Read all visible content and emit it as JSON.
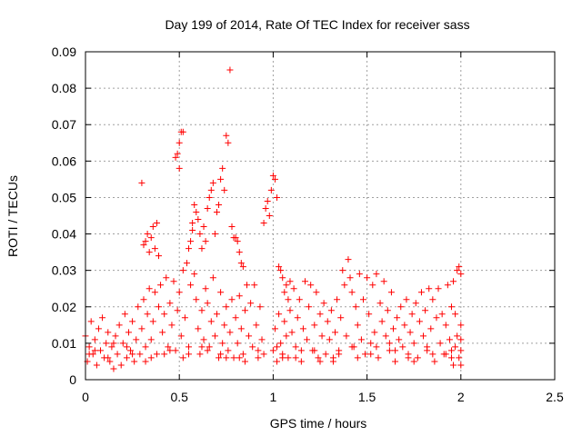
{
  "chart_data": {
    "type": "scatter",
    "title": "Day 199 of 2014, Rate Of TEC Index for receiver sass",
    "xlabel": "GPS time / hours",
    "ylabel": "ROTI / TECUs",
    "xlim": [
      0,
      2.5
    ],
    "ylim": [
      0,
      0.09
    ],
    "xticks": [
      0,
      0.5,
      1,
      1.5,
      2,
      2.5
    ],
    "xtick_labels": [
      "0",
      "0.5",
      "1",
      "1.5",
      "2",
      "2.5"
    ],
    "yticks": [
      0,
      0.01,
      0.02,
      0.03,
      0.04,
      0.05,
      0.06,
      0.07,
      0.08,
      0.09
    ],
    "ytick_labels": [
      "0",
      "0.01",
      "0.02",
      "0.03",
      "0.04",
      "0.05",
      "0.06",
      "0.07",
      "0.08",
      "0.09"
    ],
    "grid": true,
    "marker": "+",
    "marker_color": "#ff0000",
    "series": [
      {
        "name": "ROTI",
        "points": [
          [
            0.0,
            0.012
          ],
          [
            0.01,
            0.005
          ],
          [
            0.02,
            0.009
          ],
          [
            0.03,
            0.016
          ],
          [
            0.04,
            0.007
          ],
          [
            0.05,
            0.011
          ],
          [
            0.06,
            0.004
          ],
          [
            0.07,
            0.014
          ],
          [
            0.08,
            0.008
          ],
          [
            0.09,
            0.017
          ],
          [
            0.1,
            0.006
          ],
          [
            0.11,
            0.01
          ],
          [
            0.12,
            0.013
          ],
          [
            0.13,
            0.005
          ],
          [
            0.14,
            0.009
          ],
          [
            0.15,
            0.003
          ],
          [
            0.16,
            0.012
          ],
          [
            0.17,
            0.007
          ],
          [
            0.18,
            0.015
          ],
          [
            0.19,
            0.004
          ],
          [
            0.2,
            0.01
          ],
          [
            0.21,
            0.018
          ],
          [
            0.22,
            0.006
          ],
          [
            0.23,
            0.013
          ],
          [
            0.24,
            0.008
          ],
          [
            0.25,
            0.016
          ],
          [
            0.26,
            0.005
          ],
          [
            0.27,
            0.011
          ],
          [
            0.28,
            0.02
          ],
          [
            0.29,
            0.007
          ],
          [
            0.3,
            0.054
          ],
          [
            0.31,
            0.037
          ],
          [
            0.32,
            0.038
          ],
          [
            0.33,
            0.04
          ],
          [
            0.34,
            0.035
          ],
          [
            0.35,
            0.039
          ],
          [
            0.36,
            0.042
          ],
          [
            0.37,
            0.036
          ],
          [
            0.38,
            0.043
          ],
          [
            0.39,
            0.034
          ],
          [
            0.3,
            0.014
          ],
          [
            0.31,
            0.022
          ],
          [
            0.32,
            0.009
          ],
          [
            0.33,
            0.018
          ],
          [
            0.34,
            0.025
          ],
          [
            0.35,
            0.011
          ],
          [
            0.36,
            0.016
          ],
          [
            0.37,
            0.024
          ],
          [
            0.38,
            0.007
          ],
          [
            0.39,
            0.02
          ],
          [
            0.4,
            0.026
          ],
          [
            0.41,
            0.013
          ],
          [
            0.42,
            0.018
          ],
          [
            0.43,
            0.028
          ],
          [
            0.44,
            0.009
          ],
          [
            0.45,
            0.021
          ],
          [
            0.46,
            0.015
          ],
          [
            0.47,
            0.027
          ],
          [
            0.48,
            0.008
          ],
          [
            0.49,
            0.019
          ],
          [
            0.48,
            0.061
          ],
          [
            0.49,
            0.062
          ],
          [
            0.5,
            0.065
          ],
          [
            0.51,
            0.068
          ],
          [
            0.52,
            0.068
          ],
          [
            0.5,
            0.058
          ],
          [
            0.5,
            0.024
          ],
          [
            0.51,
            0.012
          ],
          [
            0.52,
            0.03
          ],
          [
            0.53,
            0.017
          ],
          [
            0.54,
            0.032
          ],
          [
            0.55,
            0.009
          ],
          [
            0.56,
            0.026
          ],
          [
            0.57,
            0.043
          ],
          [
            0.58,
            0.048
          ],
          [
            0.59,
            0.046
          ],
          [
            0.55,
            0.036
          ],
          [
            0.56,
            0.038
          ],
          [
            0.57,
            0.041
          ],
          [
            0.58,
            0.029
          ],
          [
            0.59,
            0.022
          ],
          [
            0.6,
            0.044
          ],
          [
            0.61,
            0.04
          ],
          [
            0.62,
            0.036
          ],
          [
            0.63,
            0.042
          ],
          [
            0.64,
            0.038
          ],
          [
            0.6,
            0.014
          ],
          [
            0.61,
            0.007
          ],
          [
            0.62,
            0.019
          ],
          [
            0.63,
            0.011
          ],
          [
            0.64,
            0.025
          ],
          [
            0.65,
            0.047
          ],
          [
            0.66,
            0.05
          ],
          [
            0.67,
            0.052
          ],
          [
            0.68,
            0.054
          ],
          [
            0.69,
            0.04
          ],
          [
            0.65,
            0.021
          ],
          [
            0.66,
            0.009
          ],
          [
            0.67,
            0.016
          ],
          [
            0.68,
            0.028
          ],
          [
            0.69,
            0.012
          ],
          [
            0.7,
            0.046
          ],
          [
            0.71,
            0.048
          ],
          [
            0.72,
            0.055
          ],
          [
            0.73,
            0.058
          ],
          [
            0.74,
            0.052
          ],
          [
            0.7,
            0.018
          ],
          [
            0.71,
            0.006
          ],
          [
            0.72,
            0.024
          ],
          [
            0.73,
            0.01
          ],
          [
            0.74,
            0.015
          ],
          [
            0.75,
            0.067
          ],
          [
            0.76,
            0.065
          ],
          [
            0.77,
            0.085
          ],
          [
            0.78,
            0.042
          ],
          [
            0.79,
            0.039
          ],
          [
            0.75,
            0.02
          ],
          [
            0.76,
            0.008
          ],
          [
            0.77,
            0.013
          ],
          [
            0.78,
            0.022
          ],
          [
            0.79,
            0.006
          ],
          [
            0.8,
            0.039
          ],
          [
            0.81,
            0.038
          ],
          [
            0.82,
            0.035
          ],
          [
            0.83,
            0.032
          ],
          [
            0.84,
            0.031
          ],
          [
            0.8,
            0.017
          ],
          [
            0.81,
            0.01
          ],
          [
            0.82,
            0.023
          ],
          [
            0.83,
            0.014
          ],
          [
            0.84,
            0.007
          ],
          [
            0.85,
            0.019
          ],
          [
            0.86,
            0.026
          ],
          [
            0.87,
            0.012
          ],
          [
            0.88,
            0.021
          ],
          [
            0.89,
            0.009
          ],
          [
            0.9,
            0.026
          ],
          [
            0.91,
            0.015
          ],
          [
            0.92,
            0.006
          ],
          [
            0.93,
            0.02
          ],
          [
            0.94,
            0.011
          ],
          [
            0.95,
            0.043
          ],
          [
            0.96,
            0.047
          ],
          [
            0.97,
            0.049
          ],
          [
            0.98,
            0.045
          ],
          [
            0.99,
            0.052
          ],
          [
            1.0,
            0.056
          ],
          [
            1.01,
            0.055
          ],
          [
            1.02,
            0.05
          ],
          [
            1.03,
            0.031
          ],
          [
            1.04,
            0.03
          ],
          [
            1.05,
            0.028
          ],
          [
            1.06,
            0.024
          ],
          [
            1.07,
            0.026
          ],
          [
            1.08,
            0.022
          ],
          [
            1.09,
            0.027
          ],
          [
            1.0,
            0.008
          ],
          [
            1.01,
            0.014
          ],
          [
            1.02,
            0.005
          ],
          [
            1.03,
            0.018
          ],
          [
            1.04,
            0.01
          ],
          [
            1.05,
            0.007
          ],
          [
            1.06,
            0.016
          ],
          [
            1.07,
            0.012
          ],
          [
            1.08,
            0.006
          ],
          [
            1.09,
            0.019
          ],
          [
            1.1,
            0.013
          ],
          [
            1.11,
            0.025
          ],
          [
            1.12,
            0.009
          ],
          [
            1.13,
            0.017
          ],
          [
            1.14,
            0.022
          ],
          [
            1.15,
            0.005
          ],
          [
            1.16,
            0.014
          ],
          [
            1.17,
            0.027
          ],
          [
            1.18,
            0.011
          ],
          [
            1.19,
            0.02
          ],
          [
            1.2,
            0.026
          ],
          [
            1.21,
            0.008
          ],
          [
            1.22,
            0.015
          ],
          [
            1.23,
            0.024
          ],
          [
            1.24,
            0.006
          ],
          [
            1.25,
            0.018
          ],
          [
            1.26,
            0.012
          ],
          [
            1.27,
            0.021
          ],
          [
            1.28,
            0.007
          ],
          [
            1.29,
            0.016
          ],
          [
            1.3,
            0.011
          ],
          [
            1.31,
            0.019
          ],
          [
            1.32,
            0.005
          ],
          [
            1.33,
            0.013
          ],
          [
            1.34,
            0.022
          ],
          [
            1.35,
            0.008
          ],
          [
            1.36,
            0.017
          ],
          [
            1.37,
            0.03
          ],
          [
            1.38,
            0.026
          ],
          [
            1.39,
            0.012
          ],
          [
            1.4,
            0.033
          ],
          [
            1.41,
            0.028
          ],
          [
            1.42,
            0.024
          ],
          [
            1.43,
            0.009
          ],
          [
            1.44,
            0.02
          ],
          [
            1.45,
            0.015
          ],
          [
            1.46,
            0.029
          ],
          [
            1.47,
            0.011
          ],
          [
            1.48,
            0.022
          ],
          [
            1.49,
            0.007
          ],
          [
            1.5,
            0.028
          ],
          [
            1.51,
            0.018
          ],
          [
            1.52,
            0.01
          ],
          [
            1.53,
            0.026
          ],
          [
            1.54,
            0.013
          ],
          [
            1.55,
            0.029
          ],
          [
            1.56,
            0.006
          ],
          [
            1.57,
            0.021
          ],
          [
            1.58,
            0.016
          ],
          [
            1.59,
            0.027
          ],
          [
            1.6,
            0.012
          ],
          [
            1.61,
            0.019
          ],
          [
            1.62,
            0.008
          ],
          [
            1.63,
            0.024
          ],
          [
            1.64,
            0.014
          ],
          [
            1.65,
            0.005
          ],
          [
            1.66,
            0.017
          ],
          [
            1.67,
            0.011
          ],
          [
            1.68,
            0.02
          ],
          [
            1.69,
            0.009
          ],
          [
            1.7,
            0.015
          ],
          [
            1.71,
            0.022
          ],
          [
            1.72,
            0.007
          ],
          [
            1.73,
            0.013
          ],
          [
            1.74,
            0.018
          ],
          [
            1.75,
            0.01
          ],
          [
            1.76,
            0.021
          ],
          [
            1.77,
            0.006
          ],
          [
            1.78,
            0.016
          ],
          [
            1.79,
            0.024
          ],
          [
            1.8,
            0.012
          ],
          [
            1.81,
            0.019
          ],
          [
            1.82,
            0.008
          ],
          [
            1.83,
            0.025
          ],
          [
            1.84,
            0.014
          ],
          [
            1.85,
            0.022
          ],
          [
            1.86,
            0.005
          ],
          [
            1.87,
            0.017
          ],
          [
            1.88,
            0.025
          ],
          [
            1.89,
            0.01
          ],
          [
            1.9,
            0.018
          ],
          [
            1.91,
            0.007
          ],
          [
            1.92,
            0.015
          ],
          [
            1.93,
            0.026
          ],
          [
            1.94,
            0.011
          ],
          [
            1.95,
            0.02
          ],
          [
            1.96,
            0.027
          ],
          [
            1.97,
            0.009
          ],
          [
            1.98,
            0.03
          ],
          [
            1.99,
            0.031
          ],
          [
            2.0,
            0.029
          ],
          [
            2.0,
            0.015
          ],
          [
            2.0,
            0.008
          ],
          [
            2.0,
            0.004
          ],
          [
            2.0,
            0.011
          ],
          [
            1.99,
            0.006
          ],
          [
            1.98,
            0.012
          ],
          [
            1.97,
            0.018
          ],
          [
            1.96,
            0.004
          ],
          [
            1.95,
            0.008
          ],
          [
            0.05,
            0.008
          ],
          [
            0.15,
            0.01
          ],
          [
            0.25,
            0.007
          ],
          [
            0.35,
            0.006
          ],
          [
            0.45,
            0.008
          ],
          [
            0.55,
            0.007
          ],
          [
            0.65,
            0.008
          ],
          [
            0.75,
            0.006
          ],
          [
            0.85,
            0.005
          ],
          [
            0.95,
            0.007
          ],
          [
            1.05,
            0.006
          ],
          [
            1.15,
            0.008
          ],
          [
            1.25,
            0.005
          ],
          [
            1.35,
            0.007
          ],
          [
            1.45,
            0.006
          ],
          [
            1.55,
            0.009
          ],
          [
            1.65,
            0.008
          ],
          [
            1.75,
            0.005
          ],
          [
            1.85,
            0.007
          ],
          [
            1.95,
            0.006
          ],
          [
            0.02,
            0.007
          ],
          [
            0.12,
            0.006
          ],
          [
            0.22,
            0.009
          ],
          [
            0.32,
            0.005
          ],
          [
            0.42,
            0.007
          ],
          [
            0.52,
            0.006
          ],
          [
            0.62,
            0.009
          ],
          [
            0.72,
            0.007
          ],
          [
            0.82,
            0.006
          ],
          [
            0.92,
            0.008
          ],
          [
            1.02,
            0.009
          ],
          [
            1.12,
            0.006
          ],
          [
            1.22,
            0.008
          ],
          [
            1.32,
            0.006
          ],
          [
            1.42,
            0.009
          ],
          [
            1.52,
            0.007
          ],
          [
            1.62,
            0.01
          ],
          [
            1.72,
            0.006
          ],
          [
            1.82,
            0.009
          ],
          [
            1.92,
            0.007
          ]
        ]
      }
    ]
  }
}
